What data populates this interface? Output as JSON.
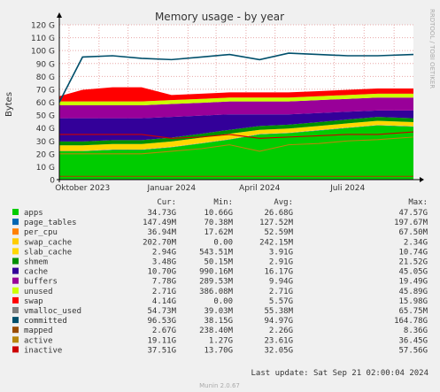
{
  "chart_data": {
    "type": "area",
    "title": "Memory usage - by year",
    "ylabel": "Bytes",
    "side_label": "RRDTOOL / TOBI OETIKER",
    "ylim": [
      0,
      120
    ],
    "yticks": [
      "0",
      "10 G",
      "20 G",
      "30 G",
      "40 G",
      "50 G",
      "60 G",
      "70 G",
      "80 G",
      "90 G",
      "100 G",
      "110 G",
      "120 G"
    ],
    "xticks": [
      "Oktober 2023",
      "Januar 2024",
      "April 2024",
      "Juli 2024"
    ],
    "x": [
      "2023-09-21",
      "2023-10-15",
      "2023-11-15",
      "2023-12-15",
      "2024-01-15",
      "2024-02-15",
      "2024-03-15",
      "2024-04-15",
      "2024-05-15",
      "2024-06-15",
      "2024-07-15",
      "2024-08-15",
      "2024-09-21"
    ],
    "unit": "G",
    "stack": [
      {
        "name": "apps",
        "color": "#00cc00",
        "values": [
          22,
          22,
          23,
          23,
          25,
          28,
          31,
          35,
          36,
          38,
          40,
          42,
          41
        ]
      },
      {
        "name": "page_tables",
        "color": "#0066b3",
        "values": [
          0.2,
          0.2,
          0.2,
          0.2,
          0.2,
          0.2,
          0.2,
          0.2,
          0.2,
          0.2,
          0.2,
          0.2,
          0.2
        ]
      },
      {
        "name": "per_cpu",
        "color": "#ff8000",
        "values": [
          0.1,
          0.1,
          0.1,
          0.1,
          0.1,
          0.1,
          0.1,
          0.1,
          0.1,
          0.1,
          0.1,
          0.1,
          0.1
        ]
      },
      {
        "name": "swap_cache",
        "color": "#ffcc00",
        "values": [
          0.3,
          0.3,
          0.3,
          0.3,
          0.3,
          0.3,
          0.3,
          0.3,
          0.3,
          0.3,
          0.3,
          0.3,
          0.3
        ]
      },
      {
        "name": "slab_cache",
        "color": "#ffd700",
        "values": [
          4,
          4,
          4,
          4,
          4,
          4,
          4,
          3,
          3,
          3,
          3,
          3,
          3
        ]
      },
      {
        "name": "shmem",
        "color": "#008f00",
        "values": [
          3,
          3,
          3,
          3,
          3,
          3,
          3,
          3,
          3,
          3,
          3,
          3,
          3
        ]
      },
      {
        "name": "cache",
        "color": "#330099",
        "values": [
          18,
          18,
          17,
          17,
          16,
          14,
          12,
          9,
          8,
          7,
          6,
          5,
          6
        ]
      },
      {
        "name": "buffers",
        "color": "#990099",
        "values": [
          10,
          10,
          10,
          10,
          10,
          10,
          10,
          10,
          10,
          10,
          10,
          10,
          10
        ]
      },
      {
        "name": "unused",
        "color": "#ccff00",
        "values": [
          3,
          3,
          3,
          3,
          3,
          3,
          3,
          3,
          3,
          3,
          3,
          3,
          3
        ]
      },
      {
        "name": "swap",
        "color": "#ff0000",
        "values": [
          4,
          9,
          11,
          11,
          4,
          4,
          4,
          4,
          4,
          4,
          4,
          4,
          4
        ]
      }
    ],
    "lines": [
      {
        "name": "committed",
        "color": "#004f6b",
        "values": [
          60,
          95,
          96,
          94,
          93,
          95,
          97,
          93,
          98,
          97,
          96,
          96,
          97
        ]
      },
      {
        "name": "inactive",
        "color": "#cc0000",
        "values": [
          35,
          35,
          35,
          35,
          32,
          33,
          35,
          32,
          33,
          34,
          35,
          35,
          37
        ]
      },
      {
        "name": "active",
        "color": "#b8860b",
        "values": [
          20,
          20,
          20,
          20,
          22,
          24,
          27,
          22,
          27,
          28,
          30,
          31,
          33
        ]
      },
      {
        "name": "mapped",
        "color": "#994c00",
        "values": [
          2.5,
          2.5,
          2.5,
          2.5,
          2.5,
          2.5,
          2.5,
          2.5,
          2.5,
          2.5,
          2.5,
          2.5,
          2.5
        ]
      }
    ],
    "legend_headers": [
      "Cur:",
      "Min:",
      "Avg:",
      "Max:"
    ],
    "legend": [
      {
        "name": "apps",
        "color": "#00cc00",
        "cur": "34.73G",
        "min": "10.66G",
        "avg": "26.68G",
        "max": "47.57G"
      },
      {
        "name": "page_tables",
        "color": "#0066b3",
        "cur": "147.49M",
        "min": "70.38M",
        "avg": "127.52M",
        "max": "197.67M"
      },
      {
        "name": "per_cpu",
        "color": "#ff8000",
        "cur": "36.94M",
        "min": "17.62M",
        "avg": "52.59M",
        "max": "67.50M"
      },
      {
        "name": "swap_cache",
        "color": "#ffcc00",
        "cur": "202.70M",
        "min": "0.00",
        "avg": "242.15M",
        "max": "2.34G"
      },
      {
        "name": "slab_cache",
        "color": "#ffd700",
        "cur": "2.94G",
        "min": "543.51M",
        "avg": "3.91G",
        "max": "10.74G"
      },
      {
        "name": "shmem",
        "color": "#008f00",
        "cur": "3.48G",
        "min": "50.15M",
        "avg": "2.91G",
        "max": "21.52G"
      },
      {
        "name": "cache",
        "color": "#330099",
        "cur": "10.70G",
        "min": "990.16M",
        "avg": "16.17G",
        "max": "45.05G"
      },
      {
        "name": "buffers",
        "color": "#990099",
        "cur": "7.78G",
        "min": "289.53M",
        "avg": "9.94G",
        "max": "19.49G"
      },
      {
        "name": "unused",
        "color": "#ccff00",
        "cur": "2.71G",
        "min": "386.08M",
        "avg": "2.71G",
        "max": "45.89G"
      },
      {
        "name": "swap",
        "color": "#ff0000",
        "cur": "4.14G",
        "min": "0.00",
        "avg": "5.57G",
        "max": "15.98G"
      },
      {
        "name": "vmalloc_used",
        "color": "#808080",
        "cur": "54.73M",
        "min": "39.03M",
        "avg": "55.38M",
        "max": "65.75M"
      },
      {
        "name": "committed",
        "color": "#004f6b",
        "cur": "96.53G",
        "min": "38.15G",
        "avg": "94.97G",
        "max": "164.78G"
      },
      {
        "name": "mapped",
        "color": "#994c00",
        "cur": "2.67G",
        "min": "238.40M",
        "avg": "2.26G",
        "max": "8.36G"
      },
      {
        "name": "active",
        "color": "#b8860b",
        "cur": "19.11G",
        "min": "1.27G",
        "avg": "23.61G",
        "max": "36.45G"
      },
      {
        "name": "inactive",
        "color": "#cc0000",
        "cur": "37.51G",
        "min": "13.70G",
        "avg": "32.05G",
        "max": "57.56G"
      }
    ],
    "last_update": "Last update:  Sat Sep 21 02:00:04 2024",
    "footer": "Munin 2.0.67"
  }
}
